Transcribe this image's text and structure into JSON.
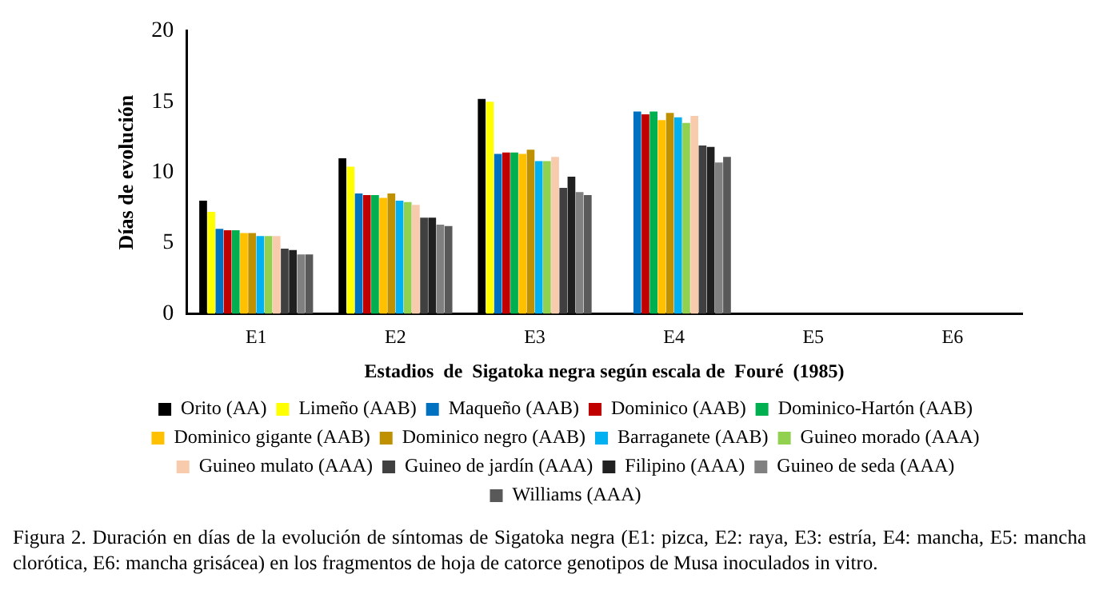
{
  "chart_data": {
    "type": "bar",
    "xlabel": "Estadios  de  Sigatoka negra según escala de  Fouré  (1985)",
    "ylabel": "Días de evolución",
    "categories": [
      "E1",
      "E2",
      "E3",
      "E4",
      "E5",
      "E6"
    ],
    "series": [
      {
        "name": "Orito (AA)",
        "color": "#000000",
        "values": [
          8.0,
          11.0,
          15.2,
          0,
          0,
          0
        ]
      },
      {
        "name": "Limeño (AAB)",
        "color": "#ffff00",
        "values": [
          7.2,
          10.4,
          15.0,
          0,
          0,
          0
        ]
      },
      {
        "name": "Maqueño (AAB)",
        "color": "#0070c0",
        "values": [
          6.0,
          8.5,
          11.3,
          14.3,
          0,
          0
        ]
      },
      {
        "name": "Dominico (AAB)",
        "color": "#c00000",
        "values": [
          5.9,
          8.4,
          11.4,
          14.1,
          0,
          0
        ]
      },
      {
        "name": "Dominico-Hartón (AAB)",
        "color": "#00b050",
        "values": [
          5.9,
          8.4,
          11.4,
          14.3,
          0,
          0
        ]
      },
      {
        "name": "Dominico gigante (AAB)",
        "color": "#ffc000",
        "values": [
          5.7,
          8.2,
          11.3,
          13.7,
          0,
          0
        ]
      },
      {
        "name": "Dominico negro (AAB)",
        "color": "#bf9000",
        "values": [
          5.7,
          8.5,
          11.6,
          14.2,
          0,
          0
        ]
      },
      {
        "name": "Barraganete (AAB)",
        "color": "#00b0f0",
        "values": [
          5.5,
          8.0,
          10.8,
          13.9,
          0,
          0
        ]
      },
      {
        "name": "Guineo morado (AAA)",
        "color": "#92d050",
        "values": [
          5.5,
          7.9,
          10.8,
          13.5,
          0,
          0
        ]
      },
      {
        "name": "Guineo mulato (AAA)",
        "color": "#f8cbad",
        "values": [
          5.5,
          7.7,
          11.1,
          14.0,
          0,
          0
        ]
      },
      {
        "name": "Guineo de jardín (AAA)",
        "color": "#404040",
        "values": [
          4.6,
          6.8,
          8.9,
          11.9,
          0,
          0
        ]
      },
      {
        "name": "Filipino (AAA)",
        "color": "#202020",
        "values": [
          4.5,
          6.8,
          9.7,
          11.8,
          0,
          0
        ]
      },
      {
        "name": "Guineo de seda (AAA)",
        "color": "#808080",
        "values": [
          4.2,
          6.3,
          8.6,
          10.7,
          0,
          0
        ]
      },
      {
        "name": "Williams (AAA)",
        "color": "#595959",
        "values": [
          4.2,
          6.2,
          8.4,
          11.1,
          0,
          0
        ]
      }
    ],
    "ylim": [
      0,
      20
    ],
    "yticks": [
      0,
      5,
      10,
      15,
      20
    ],
    "grid": false,
    "legend": "bottom",
    "annotations": [
      "Figura 2. Duración en días de la evolución de síntomas de Sigatoka negra (E1: pizca, E2: raya, E3: estría, E4: mancha, E5: mancha clorótica, E6: mancha grisácea) en los fragmentos de hoja de catorce genotipos de Musa inoculados in vitro."
    ]
  }
}
